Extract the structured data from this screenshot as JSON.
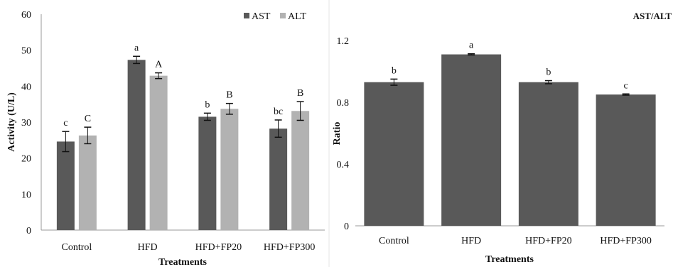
{
  "chart_data": [
    {
      "type": "bar",
      "title": "",
      "xlabel": "Treatments",
      "ylabel": "Activity (U/L)",
      "categories": [
        "Control",
        "HFD",
        "HFD+FP20",
        "HFD+FP300"
      ],
      "ylim": [
        0,
        60
      ],
      "yticks": [
        "0",
        "10",
        "20",
        "30",
        "40",
        "50",
        "60"
      ],
      "legend": "top-right",
      "grid": false,
      "series": [
        {
          "name": "AST",
          "color": "#595959",
          "values": [
            24.6,
            47.3,
            31.5,
            28.2
          ],
          "errors": [
            2.8,
            1.0,
            1.0,
            2.4
          ],
          "labels": [
            "c",
            "a",
            "b",
            "bc"
          ]
        },
        {
          "name": "ALT",
          "color": "#b2b2b2",
          "values": [
            26.3,
            42.9,
            33.7,
            33.1
          ],
          "errors": [
            2.3,
            0.8,
            1.5,
            2.6
          ],
          "labels": [
            "C",
            "A",
            "B",
            "B"
          ]
        }
      ]
    },
    {
      "type": "bar",
      "title": "AST/ALT",
      "xlabel": "Treatments",
      "ylabel": "Ratio",
      "categories": [
        "Control",
        "HFD",
        "HFD+FP20",
        "HFD+FP300"
      ],
      "ylim": [
        0,
        1.2
      ],
      "yticks": [
        "0",
        "0.4",
        "0.8",
        "1.2"
      ],
      "grid": false,
      "series": [
        {
          "name": "",
          "color": "#595959",
          "values": [
            0.93,
            1.11,
            0.93,
            0.85
          ],
          "errors": [
            0.02,
            0.004,
            0.01,
            0.004
          ],
          "labels": [
            "b",
            "a",
            "b",
            "c"
          ]
        }
      ]
    }
  ]
}
